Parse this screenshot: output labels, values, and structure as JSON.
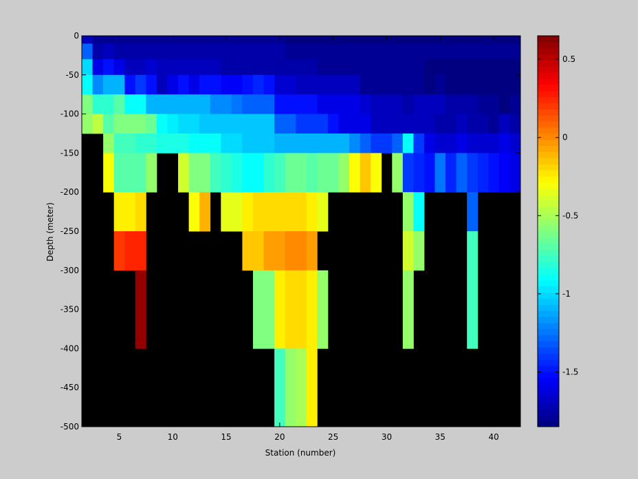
{
  "chart_data": {
    "type": "heatmap",
    "title": "",
    "xlabel": "Station (number)",
    "ylabel": "Depth (meter)",
    "xlim": [
      1.5,
      42.5
    ],
    "ylim": [
      -500,
      0
    ],
    "x_ticks": [
      5,
      10,
      15,
      20,
      25,
      30,
      35,
      40
    ],
    "y_ticks": [
      0,
      -50,
      -100,
      -150,
      -200,
      -250,
      -300,
      -350,
      -400,
      -450,
      -500
    ],
    "colorbar": {
      "colormap": "jet",
      "range": [
        -1.85,
        0.65
      ],
      "ticks": [
        0.5,
        0,
        -0.5,
        -1,
        -1.5
      ],
      "tick_labels": [
        "0.5",
        "0",
        "-0.5",
        "-1",
        "-1.5"
      ]
    },
    "missing_value_color": "#000000",
    "frame_color": "#cccccc",
    "stations": [
      2,
      3,
      4,
      5,
      6,
      7,
      8,
      9,
      10,
      11,
      12,
      13,
      14,
      15,
      16,
      17,
      18,
      19,
      20,
      21,
      22,
      23,
      24,
      25,
      26,
      27,
      28,
      29,
      30,
      31,
      32,
      33,
      34,
      35,
      36,
      37,
      38,
      39,
      40,
      41,
      42
    ],
    "depth_rows": [
      {
        "depth": 0,
        "top": 0,
        "bottom": -10
      },
      {
        "depth": -20,
        "top": -10,
        "bottom": -30
      },
      {
        "depth": -40,
        "top": -30,
        "bottom": -50
      },
      {
        "depth": -60,
        "top": -50,
        "bottom": -75
      },
      {
        "depth": -90,
        "top": -75,
        "bottom": -100
      },
      {
        "depth": -110,
        "top": -100,
        "bottom": -125
      },
      {
        "depth": -140,
        "top": -125,
        "bottom": -150
      },
      {
        "depth": -175,
        "top": -150,
        "bottom": -200
      },
      {
        "depth": -225,
        "top": -200,
        "bottom": -250
      },
      {
        "depth": -275,
        "top": -250,
        "bottom": -300
      },
      {
        "depth": -350,
        "top": -300,
        "bottom": -400
      },
      {
        "depth": -450,
        "top": -400,
        "bottom": -500
      }
    ],
    "values": [
      [
        -1.7,
        -1.8,
        -1.8,
        -1.8,
        -1.8,
        -1.8,
        -1.8,
        -1.8,
        -1.8,
        -1.8,
        -1.8,
        -1.8,
        -1.8,
        -1.8,
        -1.8,
        -1.8,
        -1.8,
        -1.8,
        -1.8,
        -1.85,
        -1.85,
        -1.85,
        -1.85,
        -1.85,
        -1.85,
        -1.85,
        -1.85,
        -1.85,
        -1.85,
        -1.85,
        -1.85,
        -1.85,
        -1.85,
        -1.85,
        -1.85,
        -1.85,
        -1.85,
        -1.85,
        -1.85,
        -1.85,
        -1.85
      ],
      [
        -1.3,
        -1.75,
        -1.7,
        -1.75,
        -1.75,
        -1.75,
        -1.75,
        -1.75,
        -1.75,
        -1.75,
        -1.75,
        -1.75,
        -1.75,
        -1.75,
        -1.75,
        -1.75,
        -1.75,
        -1.75,
        -1.75,
        -1.8,
        -1.8,
        -1.8,
        -1.8,
        -1.8,
        -1.8,
        -1.8,
        -1.8,
        -1.8,
        -1.8,
        -1.8,
        -1.8,
        -1.8,
        -1.8,
        -1.8,
        -1.8,
        -1.8,
        -1.8,
        -1.8,
        -1.8,
        -1.8,
        -1.8
      ],
      [
        -1.0,
        -1.6,
        -1.5,
        -1.6,
        -1.7,
        -1.7,
        -1.65,
        -1.7,
        -1.7,
        -1.7,
        -1.7,
        -1.7,
        -1.7,
        -1.75,
        -1.75,
        -1.75,
        -1.75,
        -1.75,
        -1.75,
        -1.75,
        -1.75,
        -1.75,
        -1.8,
        -1.8,
        -1.8,
        -1.8,
        -1.8,
        -1.8,
        -1.8,
        -1.8,
        -1.8,
        -1.8,
        -1.85,
        -1.85,
        -1.85,
        -1.85,
        -1.85,
        -1.85,
        -1.85,
        -1.85,
        -1.85
      ],
      [
        -0.9,
        -1.2,
        -1.1,
        -1.1,
        -1.5,
        -1.4,
        -1.5,
        -1.7,
        -1.6,
        -1.5,
        -1.6,
        -1.5,
        -1.5,
        -1.55,
        -1.55,
        -1.5,
        -1.45,
        -1.5,
        -1.65,
        -1.65,
        -1.7,
        -1.7,
        -1.7,
        -1.7,
        -1.7,
        -1.7,
        -1.8,
        -1.8,
        -1.8,
        -1.8,
        -1.8,
        -1.8,
        -1.85,
        -1.8,
        -1.85,
        -1.85,
        -1.85,
        -1.85,
        -1.85,
        -1.85,
        -1.85
      ],
      [
        -0.6,
        -0.8,
        -0.8,
        -0.7,
        -0.9,
        -0.9,
        -1.1,
        -1.1,
        -1.1,
        -1.1,
        -1.1,
        -1.1,
        -1.2,
        -1.2,
        -1.25,
        -1.3,
        -1.3,
        -1.3,
        -1.5,
        -1.5,
        -1.5,
        -1.5,
        -1.6,
        -1.6,
        -1.6,
        -1.6,
        -1.65,
        -1.7,
        -1.7,
        -1.7,
        -1.75,
        -1.7,
        -1.7,
        -1.7,
        -1.75,
        -1.75,
        -1.75,
        -1.8,
        -1.8,
        -1.85,
        -1.8
      ],
      [
        -0.55,
        -0.45,
        -0.7,
        -0.6,
        -0.6,
        -0.6,
        -0.65,
        -0.9,
        -0.95,
        -1.0,
        -1.0,
        -1.05,
        -1.05,
        -1.05,
        -1.05,
        -1.05,
        -1.05,
        -1.05,
        -1.3,
        -1.3,
        -1.4,
        -1.4,
        -1.4,
        -1.5,
        -1.6,
        -1.6,
        -1.6,
        -1.7,
        -1.7,
        -1.7,
        -1.7,
        -1.7,
        -1.7,
        -1.75,
        -1.75,
        -1.7,
        -1.75,
        -1.75,
        -1.8,
        -1.7,
        -1.75
      ],
      [
        null,
        null,
        -0.55,
        -0.75,
        -0.75,
        -0.8,
        -0.8,
        -0.85,
        -0.85,
        -0.85,
        -0.9,
        -0.9,
        -0.9,
        -1.0,
        -1.0,
        -1.05,
        -1.05,
        -1.05,
        -1.1,
        -1.1,
        -1.1,
        -1.1,
        -1.1,
        -1.1,
        -1.1,
        -1.2,
        -1.3,
        -1.4,
        -1.4,
        -1.3,
        -0.9,
        -1.4,
        -1.6,
        -1.65,
        -1.65,
        -1.6,
        -1.65,
        -1.65,
        -1.65,
        -1.6,
        -1.65
      ],
      [
        null,
        null,
        -0.3,
        -0.7,
        -0.7,
        -0.7,
        -0.55,
        null,
        null,
        -0.4,
        -0.6,
        -0.6,
        -0.75,
        -0.8,
        -0.85,
        -0.9,
        -0.9,
        -0.8,
        -0.75,
        -0.65,
        -0.65,
        -0.7,
        -0.65,
        -0.65,
        -0.55,
        -0.3,
        -0.15,
        -0.3,
        null,
        -0.55,
        -1.4,
        -1.45,
        -1.5,
        -1.25,
        -1.45,
        -1.3,
        -1.4,
        -1.45,
        -1.5,
        -1.55,
        -1.6
      ],
      [
        null,
        null,
        null,
        -0.25,
        -0.25,
        -0.2,
        null,
        null,
        null,
        null,
        -0.3,
        -0.1,
        null,
        -0.35,
        -0.35,
        -0.25,
        -0.2,
        -0.2,
        -0.2,
        -0.2,
        -0.2,
        -0.25,
        -0.35,
        null,
        null,
        null,
        null,
        null,
        null,
        null,
        -0.55,
        -0.9,
        null,
        null,
        null,
        null,
        -1.3,
        null,
        null,
        null,
        null
      ],
      [
        null,
        null,
        null,
        0.2,
        0.25,
        0.25,
        null,
        null,
        null,
        null,
        null,
        null,
        null,
        null,
        null,
        -0.15,
        -0.15,
        -0.05,
        -0.05,
        0.0,
        0.0,
        -0.05,
        null,
        null,
        null,
        null,
        null,
        null,
        null,
        null,
        -0.4,
        -0.55,
        null,
        null,
        null,
        null,
        -0.75,
        null,
        null,
        null,
        null
      ],
      [
        null,
        null,
        null,
        null,
        null,
        0.6,
        null,
        null,
        null,
        null,
        null,
        null,
        null,
        null,
        null,
        null,
        -0.6,
        -0.6,
        -0.25,
        -0.2,
        -0.2,
        -0.25,
        -0.55,
        null,
        null,
        null,
        null,
        null,
        null,
        null,
        -0.55,
        null,
        null,
        null,
        null,
        null,
        -0.75,
        null,
        null,
        null,
        null
      ],
      [
        null,
        null,
        null,
        null,
        null,
        null,
        null,
        null,
        null,
        null,
        null,
        null,
        null,
        null,
        null,
        null,
        null,
        null,
        -0.75,
        -0.55,
        -0.5,
        -0.25,
        null,
        null,
        null,
        null,
        null,
        null,
        null,
        null,
        null,
        null,
        null,
        null,
        null,
        null,
        null,
        null,
        null,
        null,
        null
      ]
    ]
  }
}
